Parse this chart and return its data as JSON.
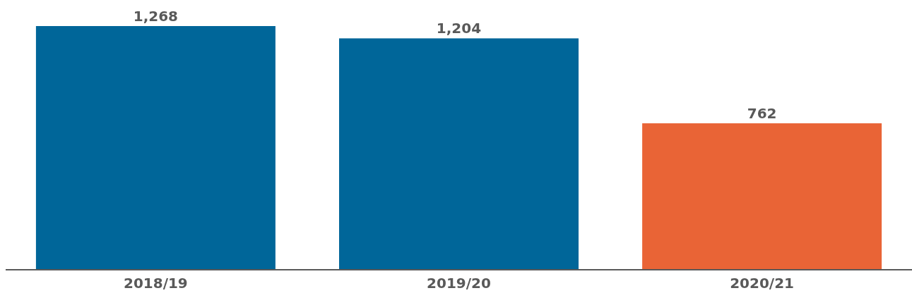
{
  "chart_data": {
    "type": "bar",
    "categories": [
      "2018/19",
      "2019/20",
      "2020/21"
    ],
    "values": [
      1268,
      1204,
      762
    ],
    "value_labels": [
      "1,268",
      "1,204",
      "762"
    ],
    "colors": [
      "#006699",
      "#006699",
      "#e96436"
    ]
  }
}
